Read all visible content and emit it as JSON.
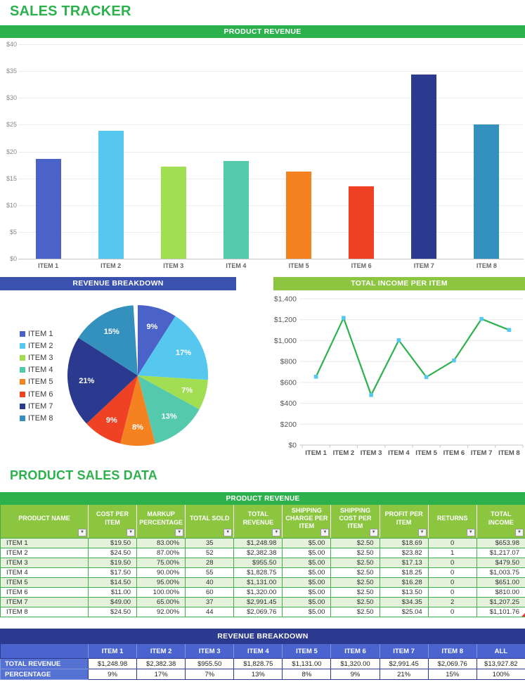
{
  "page": {
    "title": "SALES TRACKER",
    "section_title": "PRODUCT SALES DATA"
  },
  "banners": {
    "product_revenue": "PRODUCT REVENUE",
    "revenue_breakdown": "REVENUE BREAKDOWN",
    "total_income": "TOTAL INCOME PER ITEM"
  },
  "icons": {
    "filter_icon": "▼"
  },
  "colors": {
    "title_green": "#2db14d",
    "banner_blue": "#3a51ae",
    "banner_light_green": "#8cc641",
    "table_border_green": "#43aa4d",
    "row_stripe_green": "#e4f2dc",
    "navy": "#2b3a8f",
    "header_blue": "#4a63ce",
    "label_blue": "#5571d2",
    "item_colors": [
      "#4b62c9",
      "#56c8ef",
      "#a2de52",
      "#55c9ae",
      "#f58220",
      "#ef4123",
      "#2b3a8f",
      "#3491be"
    ]
  },
  "chart_data": [
    {
      "type": "bar",
      "title": "PRODUCT REVENUE",
      "categories": [
        "ITEM 1",
        "ITEM 2",
        "ITEM 3",
        "ITEM 4",
        "ITEM 5",
        "ITEM 6",
        "ITEM 7",
        "ITEM 8"
      ],
      "values": [
        18.69,
        23.82,
        17.13,
        18.25,
        16.28,
        13.5,
        34.35,
        25.04
      ],
      "xlabel": "",
      "ylabel": "",
      "ylim": [
        0,
        40
      ],
      "ytick_step": 5,
      "ytick_labels": [
        "$0",
        "$5",
        "$10",
        "$15",
        "$20",
        "$25",
        "$30",
        "$35",
        "$40"
      ],
      "grid": true,
      "legend": false
    },
    {
      "type": "pie",
      "title": "REVENUE BREAKDOWN",
      "labels": [
        "ITEM 1",
        "ITEM 2",
        "ITEM 3",
        "ITEM 4",
        "ITEM 5",
        "ITEM 6",
        "ITEM 7",
        "ITEM 8"
      ],
      "values_percent": [
        9,
        17,
        7,
        13,
        8,
        9,
        21,
        15
      ],
      "slice_labels": [
        "9%",
        "17%",
        "7%",
        "13%",
        "8%",
        "9%",
        "21%",
        "15%"
      ],
      "legend_position": "left",
      "start_angle_deg": -90,
      "direction": "clockwise"
    },
    {
      "type": "line",
      "title": "TOTAL INCOME PER ITEM",
      "categories": [
        "ITEM 1",
        "ITEM 2",
        "ITEM 3",
        "ITEM 4",
        "ITEM 5",
        "ITEM 6",
        "ITEM 7",
        "ITEM 8"
      ],
      "values": [
        653.98,
        1217.07,
        479.5,
        1003.75,
        651.0,
        810.0,
        1207.25,
        1101.76
      ],
      "xlabel": "",
      "ylabel": "",
      "ylim": [
        0,
        1400
      ],
      "ytick_step": 200,
      "ytick_labels": [
        "$0",
        "$200",
        "$400",
        "$600",
        "$800",
        "$1,000",
        "$1,200",
        "$1,400"
      ],
      "grid": true,
      "line_color": "#2db14d",
      "marker_color": "#56c8ef"
    }
  ],
  "sales_table": {
    "banner": "PRODUCT REVENUE",
    "columns": [
      "PRODUCT NAME",
      "COST PER ITEM",
      "MARKUP PERCENTAGE",
      "TOTAL SOLD",
      "TOTAL REVENUE",
      "SHIPPING CHARGE PER ITEM",
      "SHIPPING COST PER ITEM",
      "PROFIT PER ITEM",
      "RETURNS",
      "TOTAL INCOME"
    ],
    "rows": [
      [
        "ITEM 1",
        "$19.50",
        "83.00%",
        "35",
        "$1,248.98",
        "$5.00",
        "$2.50",
        "$18.69",
        "0",
        "$653.98"
      ],
      [
        "ITEM 2",
        "$24.50",
        "87.00%",
        "52",
        "$2,382.38",
        "$5.00",
        "$2.50",
        "$23.82",
        "1",
        "$1,217.07"
      ],
      [
        "ITEM 3",
        "$19.50",
        "75.00%",
        "28",
        "$955.50",
        "$5.00",
        "$2.50",
        "$17.13",
        "0",
        "$479.50"
      ],
      [
        "ITEM 4",
        "$17.50",
        "90.00%",
        "55",
        "$1,828.75",
        "$5.00",
        "$2.50",
        "$18.25",
        "0",
        "$1,003.75"
      ],
      [
        "ITEM 5",
        "$14.50",
        "95.00%",
        "40",
        "$1,131.00",
        "$5.00",
        "$2.50",
        "$16.28",
        "0",
        "$651.00"
      ],
      [
        "ITEM 6",
        "$11.00",
        "100.00%",
        "60",
        "$1,320.00",
        "$5.00",
        "$2.50",
        "$13.50",
        "0",
        "$810.00"
      ],
      [
        "ITEM 7",
        "$49.00",
        "65.00%",
        "37",
        "$2,991.45",
        "$5.00",
        "$2.50",
        "$34.35",
        "2",
        "$1,207.25"
      ],
      [
        "ITEM 8",
        "$24.50",
        "92.00%",
        "44",
        "$2,069.76",
        "$5.00",
        "$2.50",
        "$25.04",
        "0",
        "$1,101.76"
      ]
    ]
  },
  "breakdown_table": {
    "banner": "REVENUE BREAKDOWN",
    "columns": [
      "",
      "ITEM 1",
      "ITEM 2",
      "ITEM 3",
      "ITEM 4",
      "ITEM 5",
      "ITEM 6",
      "ITEM 7",
      "ITEM 8",
      "ALL"
    ],
    "rows": [
      {
        "label": "TOTAL REVENUE",
        "values": [
          "$1,248.98",
          "$2,382.38",
          "$955.50",
          "$1,828.75",
          "$1,131.00",
          "$1,320.00",
          "$2,991.45",
          "$2,069.76",
          "$13,927.82"
        ]
      },
      {
        "label": "PERCENTAGE",
        "values": [
          "9%",
          "17%",
          "7%",
          "13%",
          "8%",
          "9%",
          "21%",
          "15%",
          "100%"
        ]
      }
    ]
  }
}
